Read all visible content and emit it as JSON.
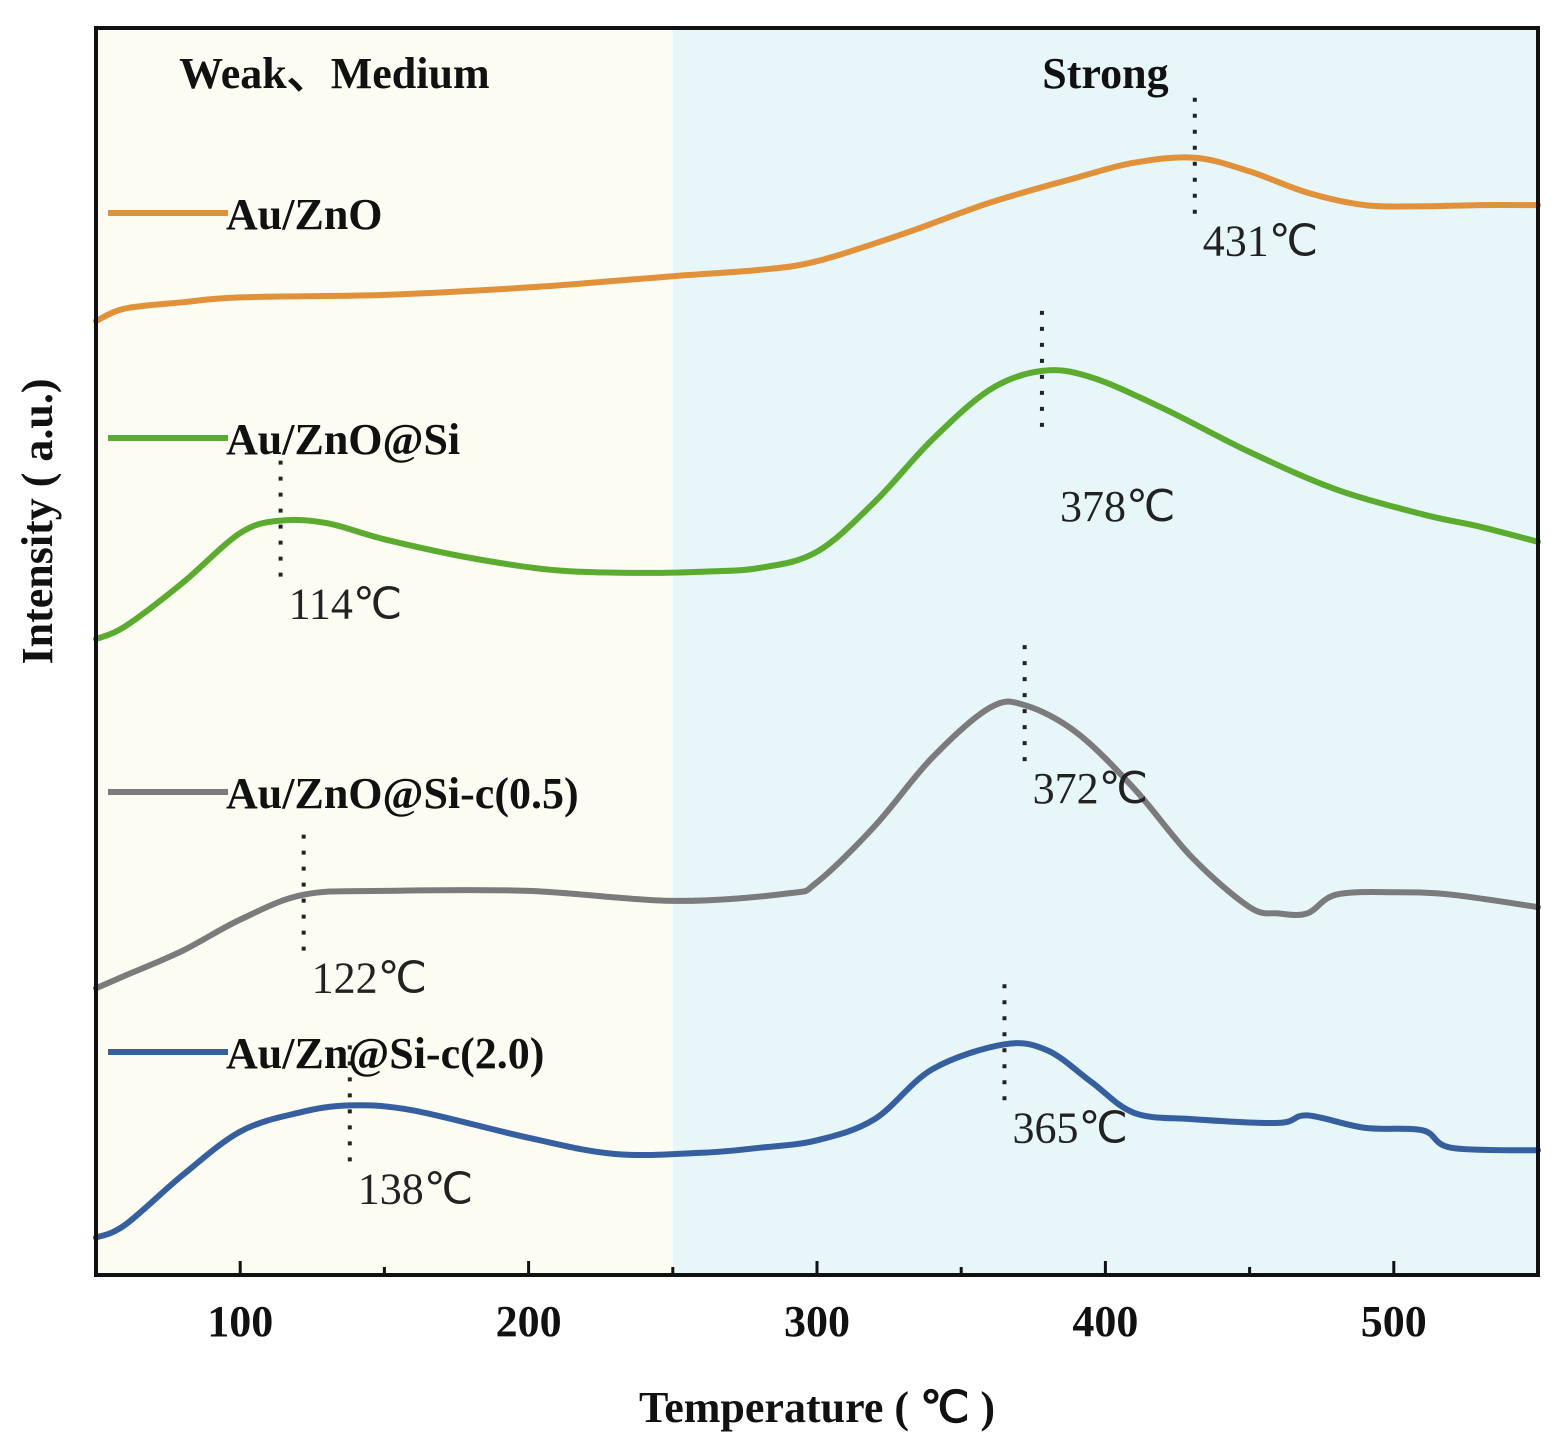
{
  "chart_data": {
    "type": "line",
    "title": "",
    "xlabel": "Temperature ( ℃ )",
    "ylabel": "Intensity ( a.u.)",
    "xlim": [
      50,
      550
    ],
    "ylim": [
      0,
      100
    ],
    "xticks": [
      100,
      200,
      300,
      400,
      500
    ],
    "grid": false,
    "regions": [
      {
        "label": "Weak、Medium",
        "x_range": [
          50,
          250
        ],
        "color": "#fdfcf3"
      },
      {
        "label": "Strong",
        "x_range": [
          250,
          550
        ],
        "color": "#e6f6f9"
      }
    ],
    "series": [
      {
        "name": "Au/ZnO",
        "color": "#e0913a",
        "x": [
          50,
          60,
          80,
          100,
          150,
          200,
          250,
          280,
          300,
          330,
          360,
          390,
          410,
          431,
          450,
          470,
          490,
          510,
          530,
          550
        ],
        "y": [
          76.5,
          77.5,
          78.0,
          78.4,
          78.6,
          79.2,
          80.1,
          80.6,
          81.3,
          83.5,
          86.0,
          88.0,
          89.2,
          89.6,
          88.5,
          86.8,
          85.8,
          85.7,
          85.8,
          85.8
        ],
        "peaks": [
          {
            "x": 431,
            "label": "431℃"
          }
        ]
      },
      {
        "name": "Au/ZnO@Si",
        "color": "#5aab2e",
        "x": [
          50,
          60,
          80,
          100,
          114,
          130,
          150,
          180,
          210,
          240,
          260,
          280,
          300,
          320,
          340,
          360,
          378,
          395,
          420,
          450,
          480,
          510,
          530,
          550
        ],
        "y": [
          51.0,
          52.0,
          55.5,
          59.5,
          60.5,
          60.3,
          59.0,
          57.5,
          56.5,
          56.3,
          56.4,
          56.7,
          58.0,
          62.0,
          67.0,
          71.0,
          72.5,
          72.0,
          69.5,
          66.0,
          63.0,
          61.0,
          60.0,
          58.8
        ],
        "peaks": [
          {
            "x": 114,
            "label": "114℃"
          },
          {
            "x": 378,
            "label": "378℃"
          }
        ]
      },
      {
        "name": "Au/ZnO@Si-c(0.5)",
        "color": "#7b7b7b",
        "x": [
          50,
          60,
          80,
          100,
          122,
          150,
          200,
          250,
          290,
          300,
          320,
          340,
          360,
          372,
          390,
          410,
          430,
          450,
          460,
          470,
          480,
          500,
          520,
          550
        ],
        "y": [
          23.0,
          24.0,
          26.0,
          28.5,
          30.5,
          30.8,
          30.8,
          30.0,
          30.6,
          31.5,
          36.0,
          41.5,
          45.5,
          45.7,
          43.5,
          39.0,
          33.5,
          29.5,
          29.0,
          29.0,
          30.5,
          30.7,
          30.5,
          29.5
        ],
        "peaks": [
          {
            "x": 122,
            "label": "122℃"
          },
          {
            "x": 372,
            "label": "372℃"
          }
        ]
      },
      {
        "name": "Au/Zn@Si-c(2.0)",
        "color": "#365f9f",
        "x": [
          50,
          60,
          80,
          100,
          120,
          138,
          160,
          200,
          230,
          260,
          280,
          300,
          320,
          340,
          365,
          380,
          395,
          410,
          430,
          460,
          470,
          490,
          510,
          520,
          550
        ],
        "y": [
          3.0,
          4.0,
          8.0,
          11.5,
          13.0,
          13.6,
          13.2,
          11.0,
          9.7,
          9.8,
          10.2,
          10.8,
          12.5,
          16.5,
          18.5,
          18.0,
          15.5,
          13.0,
          12.5,
          12.2,
          12.8,
          11.8,
          11.6,
          10.2,
          10.0
        ],
        "peaks": [
          {
            "x": 138,
            "label": "138℃"
          },
          {
            "x": 365,
            "label": "365℃"
          }
        ]
      }
    ]
  }
}
